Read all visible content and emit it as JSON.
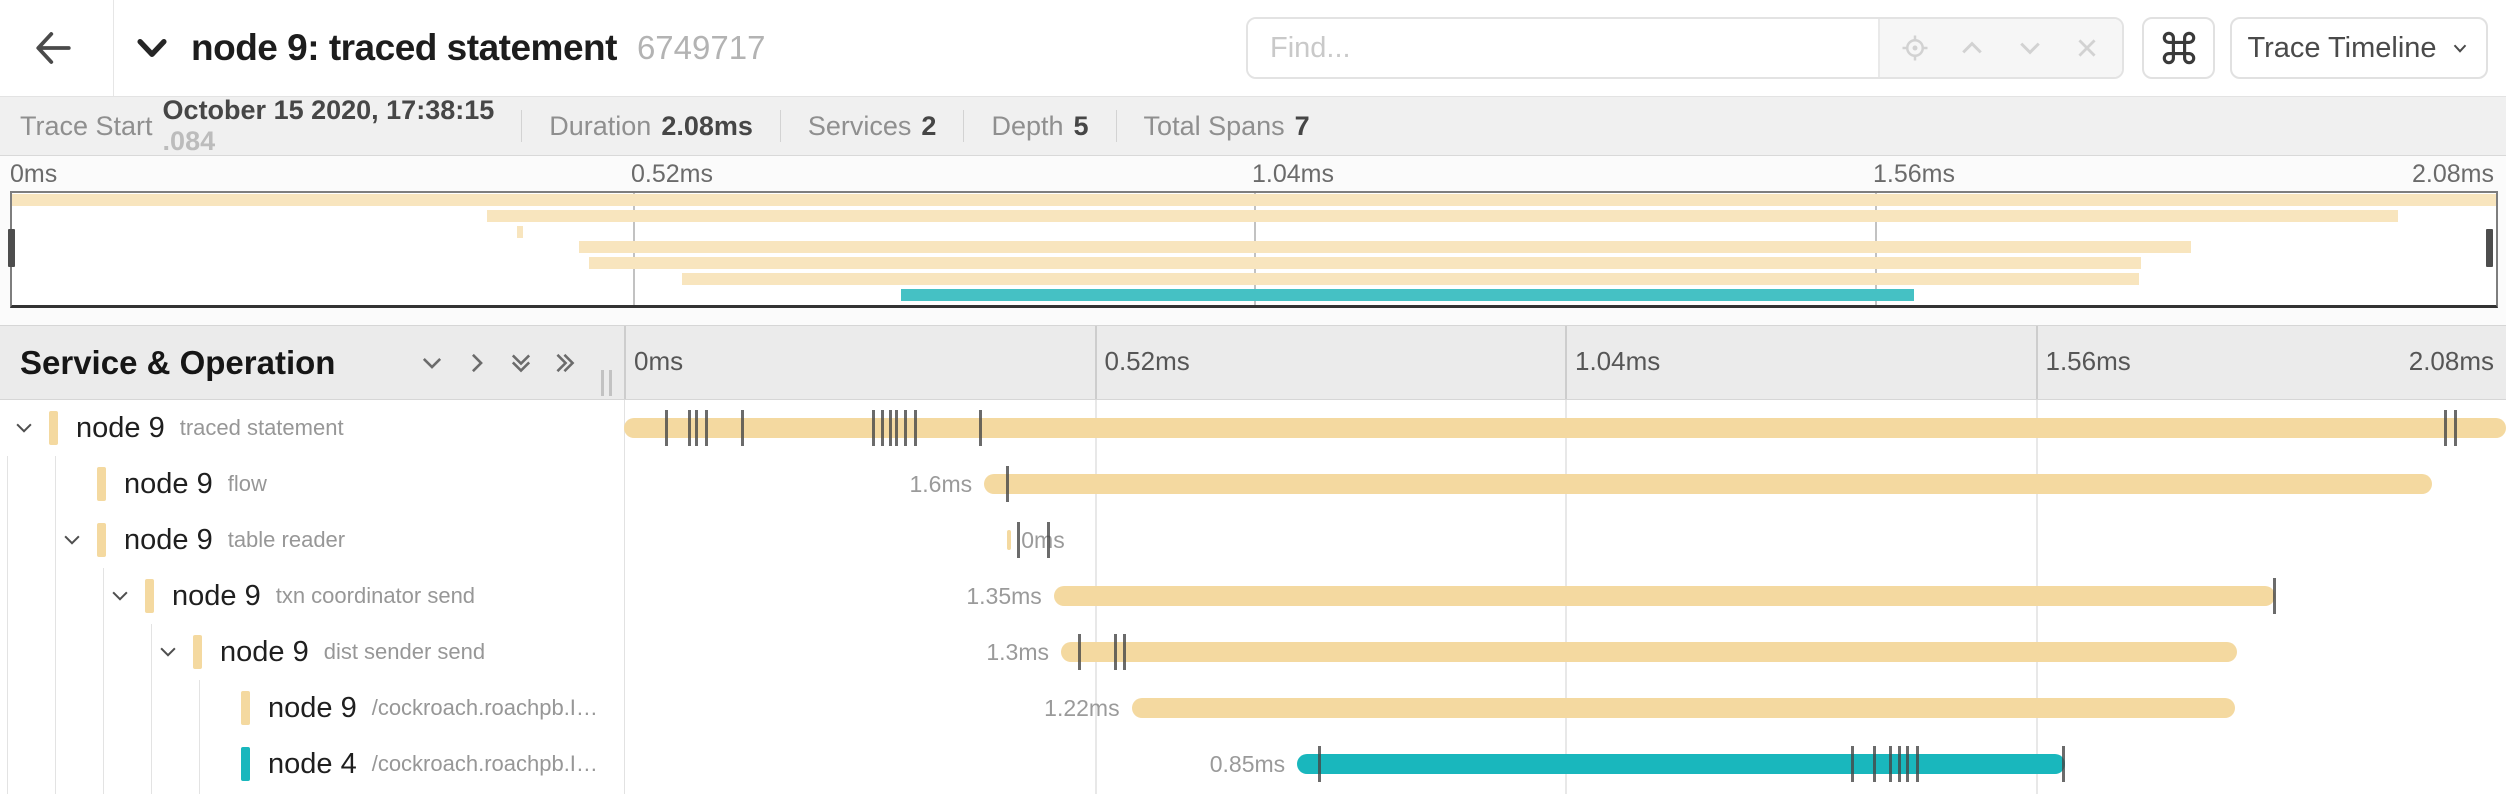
{
  "header": {
    "title": "node 9: traced statement",
    "trace_id": "6749717",
    "find_placeholder": "Find...",
    "command_symbol": "⌘",
    "view_dropdown": "Trace Timeline"
  },
  "summary": {
    "items": [
      {
        "label": "Trace Start",
        "value": "October 15 2020, 17:38:15",
        "suffix": ".084"
      },
      {
        "label": "Duration",
        "value": "2.08ms",
        "suffix": ""
      },
      {
        "label": "Services",
        "value": "2",
        "suffix": ""
      },
      {
        "label": "Depth",
        "value": "5",
        "suffix": ""
      },
      {
        "label": "Total Spans",
        "value": "7",
        "suffix": ""
      }
    ]
  },
  "timeline": {
    "left_header": "Service & Operation",
    "total_ms": 2.08,
    "ruler_labels": [
      "0ms",
      "0.52ms",
      "1.04ms",
      "1.56ms",
      "2.08ms"
    ]
  },
  "colors": {
    "tan_bar": "#F4D9A0",
    "tan_minimap": "#F8E5BE",
    "teal_bar": "#19B7BD",
    "teal_minimap": "#45C1C4",
    "tick": "#464646"
  },
  "spans": [
    {
      "service": "node 9",
      "operation": "traced statement",
      "level": 0,
      "expandable": true,
      "color": "tan",
      "start_ms": 0,
      "duration_ms": 2.08,
      "duration_label": "",
      "label_side": "none",
      "ticks_ms": [
        0.045,
        0.071,
        0.078,
        0.09,
        0.129,
        0.274,
        0.284,
        0.293,
        0.3,
        0.31,
        0.321,
        0.392,
        2.012,
        2.022
      ]
    },
    {
      "service": "node 9",
      "operation": "flow",
      "level": 1,
      "expandable": false,
      "color": "tan",
      "start_ms": 0.398,
      "duration_ms": 1.6,
      "duration_label": "1.6ms",
      "label_side": "left",
      "ticks_ms": [
        0.422
      ]
    },
    {
      "service": "node 9",
      "operation": "table reader",
      "level": 1,
      "expandable": true,
      "color": "tan",
      "start_ms": 0.423,
      "duration_ms": 0.005,
      "duration_label": "0ms",
      "label_side": "right",
      "ticks_ms": [
        0.434,
        0.467
      ]
    },
    {
      "service": "node 9",
      "operation": "txn coordinator send",
      "level": 2,
      "expandable": true,
      "color": "tan",
      "start_ms": 0.475,
      "duration_ms": 1.35,
      "duration_label": "1.35ms",
      "label_side": "left",
      "ticks_ms": [
        1.822
      ]
    },
    {
      "service": "node 9",
      "operation": "dist sender send",
      "level": 3,
      "expandable": true,
      "color": "tan",
      "start_ms": 0.483,
      "duration_ms": 1.3,
      "duration_label": "1.3ms",
      "label_side": "left",
      "ticks_ms": [
        0.502,
        0.541,
        0.552
      ]
    },
    {
      "service": "node 9",
      "operation": "/cockroach.roachpb.I…",
      "level": 4,
      "expandable": false,
      "color": "tan",
      "start_ms": 0.561,
      "duration_ms": 1.22,
      "duration_label": "1.22ms",
      "label_side": "left",
      "ticks_ms": []
    },
    {
      "service": "node 4",
      "operation": "/cockroach.roachpb.I…",
      "level": 4,
      "expandable": false,
      "color": "teal",
      "start_ms": 0.744,
      "duration_ms": 0.849,
      "duration_label": "0.85ms",
      "label_side": "left",
      "ticks_ms": [
        0.767,
        1.356,
        1.38,
        1.398,
        1.408,
        1.417,
        1.428,
        1.589
      ]
    }
  ]
}
